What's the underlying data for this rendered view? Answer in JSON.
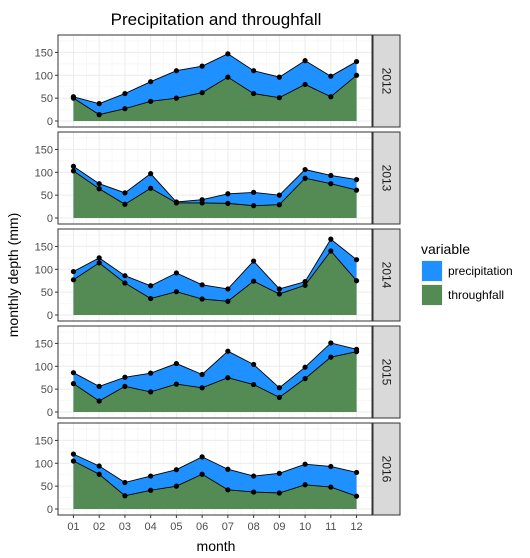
{
  "chart_data": {
    "type": "area",
    "title": "Precipitation and throughfall",
    "xlabel": "month",
    "ylabel": "monthly depth (mm)",
    "categories": [
      "01",
      "02",
      "03",
      "04",
      "05",
      "06",
      "07",
      "08",
      "09",
      "10",
      "11",
      "12"
    ],
    "y_ticks": [
      0,
      50,
      100,
      150
    ],
    "ylim": [
      0,
      175
    ],
    "grid": true,
    "legend": {
      "title": "variable",
      "placement": "right",
      "entries": [
        "precipitation",
        "throughfall"
      ]
    },
    "colors": {
      "precipitation": "#1e90ff",
      "throughfall": "#548b54",
      "panel_background": "#ffffff",
      "grid": "#ebebeb",
      "strip": "#d9d9d9"
    },
    "panels": [
      {
        "label": "2012",
        "series": [
          {
            "name": "precipitation",
            "values": [
              53,
              38,
              60,
              86,
              110,
              120,
              147,
              110,
              96,
              132,
              98,
              130
            ]
          },
          {
            "name": "throughfall",
            "values": [
              50,
              14,
              27,
              43,
              50,
              62,
              96,
              60,
              51,
              80,
              53,
              100
            ]
          }
        ]
      },
      {
        "label": "2013",
        "series": [
          {
            "name": "precipitation",
            "values": [
              113,
              75,
              55,
              97,
              35,
              40,
              53,
              56,
              50,
              106,
              93,
              84
            ]
          },
          {
            "name": "throughfall",
            "values": [
              103,
              64,
              30,
              65,
              33,
              33,
              32,
              27,
              29,
              87,
              75,
              61
            ]
          }
        ]
      },
      {
        "label": "2014",
        "series": [
          {
            "name": "precipitation",
            "values": [
              95,
              125,
              86,
              64,
              92,
              66,
              57,
              118,
              57,
              73,
              166,
              121
            ]
          },
          {
            "name": "throughfall",
            "values": [
              77,
              114,
              70,
              36,
              51,
              35,
              30,
              74,
              46,
              65,
              140,
              75
            ]
          }
        ]
      },
      {
        "label": "2015",
        "series": [
          {
            "name": "precipitation",
            "values": [
              86,
              56,
              76,
              85,
              106,
              82,
              133,
              104,
              53,
              98,
              151,
              137
            ]
          },
          {
            "name": "throughfall",
            "values": [
              62,
              24,
              56,
              44,
              61,
              53,
              75,
              60,
              32,
              73,
              120,
              132
            ]
          }
        ]
      },
      {
        "label": "2016",
        "series": [
          {
            "name": "precipitation",
            "values": [
              120,
              94,
              58,
              72,
              86,
              114,
              87,
              72,
              78,
              98,
              93,
              80
            ]
          },
          {
            "name": "throughfall",
            "values": [
              105,
              76,
              29,
              41,
              50,
              76,
              42,
              37,
              35,
              53,
              48,
              28
            ]
          }
        ]
      }
    ]
  }
}
